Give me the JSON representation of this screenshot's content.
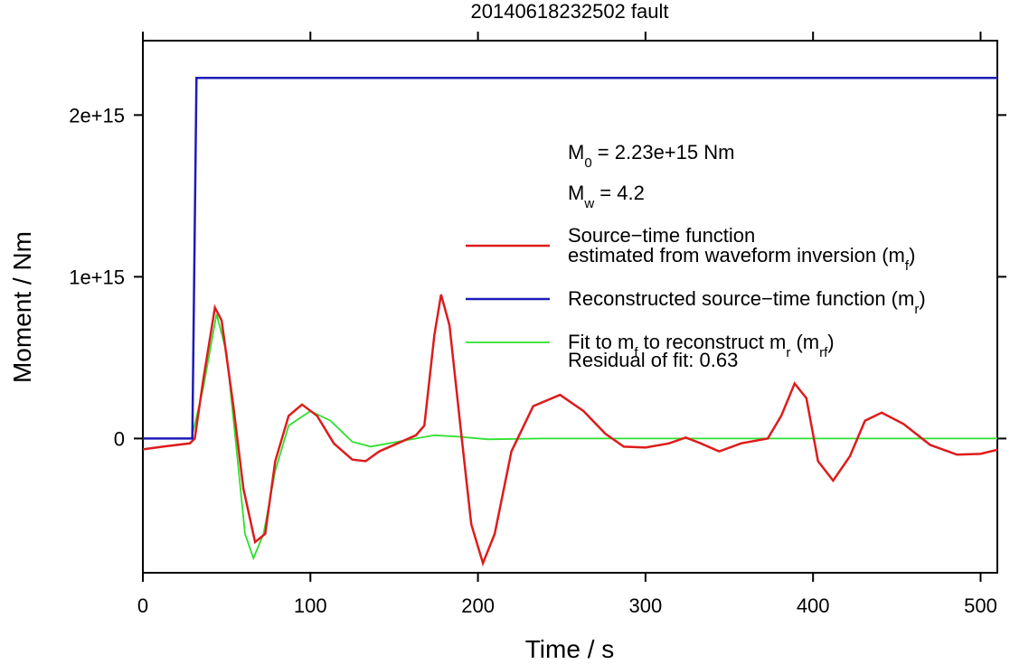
{
  "chart_data": {
    "type": "line",
    "title": "20140618232502 fault",
    "x_label": "Time / s",
    "y_label": "Moment / Nm",
    "xlim": [
      0,
      510
    ],
    "xticks": [
      0,
      100,
      200,
      300,
      400,
      500
    ],
    "ylim": [
      -830000000000000.0,
      2460000000000000.0
    ],
    "yticks": [
      0,
      {
        "value": 1000000000000000.0,
        "label": "1e+15"
      },
      {
        "value": 2000000000000000.0,
        "label": "2e+15"
      }
    ],
    "series": [
      {
        "name": [
          [
            "Source−time function"
          ],
          [
            "estimated from waveform inversion (m",
            {
              "sub": "f"
            },
            ")"
          ]
        ],
        "color": "#dd1c1c",
        "width": 2.5,
        "x": [
          0,
          12,
          28,
          31,
          36,
          43,
          47,
          54,
          60,
          67,
          73,
          79,
          87,
          95,
          104,
          114,
          125,
          133,
          141,
          152,
          163,
          168,
          174,
          178,
          183,
          190,
          196,
          203,
          210,
          220,
          233,
          249,
          263,
          276,
          287,
          300,
          314,
          324,
          333,
          344,
          357,
          373,
          381,
          389,
          396,
          403,
          412,
          422,
          431,
          441,
          454,
          470,
          486,
          500,
          510
        ],
        "values": [
          -67000000000000.0,
          -50000000000000.0,
          -30000000000000.0,
          0,
          360000000000000.0,
          810000000000000.0,
          730000000000000.0,
          200000000000000.0,
          -310000000000000.0,
          -640000000000000.0,
          -590000000000000.0,
          -140000000000000.0,
          140000000000000.0,
          210000000000000.0,
          140000000000000.0,
          -30000000000000.0,
          -130000000000000.0,
          -140000000000000.0,
          -80000000000000.0,
          -30000000000000.0,
          20000000000000.0,
          80000000000000.0,
          640000000000000.0,
          890000000000000.0,
          700000000000000.0,
          30000000000000.0,
          -530000000000000.0,
          -770000000000000.0,
          -590000000000000.0,
          -80000000000000.0,
          200000000000000.0,
          270000000000000.0,
          170000000000000.0,
          30000000000000.0,
          -50000000000000.0,
          -56000000000000.0,
          -30000000000000.0,
          6000000000000.0,
          -30000000000000.0,
          -80000000000000.0,
          -30000000000000.0,
          0,
          140000000000000.0,
          340000000000000.0,
          250000000000000.0,
          -140000000000000.0,
          -260000000000000.0,
          -110000000000000.0,
          110000000000000.0,
          160000000000000.0,
          90000000000000.0,
          -40000000000000.0,
          -100000000000000.0,
          -95000000000000.0,
          -70000000000000.0
        ]
      },
      {
        "name": [
          [
            "Reconstructed source−time function (m",
            {
              "sub": "r"
            },
            ")"
          ]
        ],
        "color": "#1c1cb8",
        "width": 2.5,
        "x": [
          0,
          29.5,
          32,
          510
        ],
        "values": [
          0,
          0,
          2230000000000000.0,
          2230000000000000.0
        ]
      },
      {
        "name": [
          [
            "Fit to m",
            {
              "sub": "f"
            },
            " to reconstruct m",
            {
              "sub": "r"
            },
            " (m",
            {
              "sub": "rf"
            },
            ")"
          ]
        ],
        "color": "#2ee02e",
        "width": 1.8,
        "x": [
          0,
          29,
          36,
          44,
          50,
          56,
          61,
          66,
          72,
          79,
          87,
          100,
          112,
          125,
          136,
          152,
          174,
          190,
          206,
          238,
          510
        ],
        "values": [
          0,
          0,
          310000000000000.0,
          770000000000000.0,
          530000000000000.0,
          -80000000000000.0,
          -590000000000000.0,
          -740000000000000.0,
          -590000000000000.0,
          -200000000000000.0,
          80000000000000.0,
          170000000000000.0,
          110000000000000.0,
          -20000000000000.0,
          -50000000000000.0,
          -20000000000000.0,
          20000000000000.0,
          10000000000000.0,
          -5000000000000.0,
          0,
          0
        ]
      }
    ],
    "annotations": [
      [
        "M",
        {
          "sub": "0"
        },
        " = 2.23e+15 Nm"
      ],
      [
        "M",
        {
          "sub": "w"
        },
        " = 4.2"
      ],
      [
        "Residual of fit: 0.63"
      ]
    ]
  }
}
